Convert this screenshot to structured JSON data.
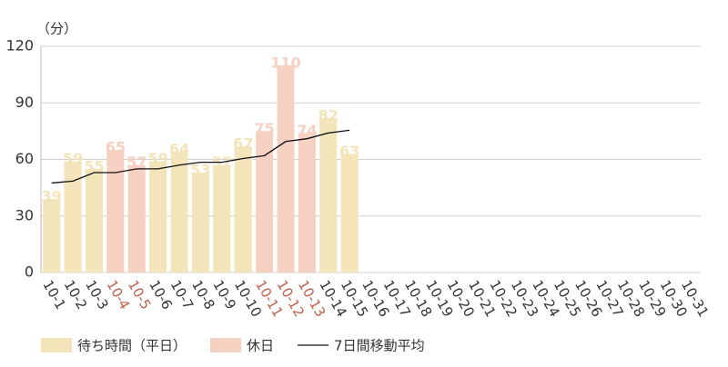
{
  "chart_data": {
    "type": "bar",
    "y_label": "（分）",
    "categories": [
      "10-1",
      "10-2",
      "10-3",
      "10-4",
      "10-5",
      "10-6",
      "10-7",
      "10-8",
      "10-9",
      "10-10",
      "10-11",
      "10-12",
      "10-13",
      "10-14",
      "10-15",
      "10-16",
      "10-17",
      "10-18",
      "10-19",
      "10-20",
      "10-21",
      "10-22",
      "10-23",
      "10-24",
      "10-25",
      "10-26",
      "10-27",
      "10-28",
      "10-29",
      "10-30",
      "10-31"
    ],
    "series": [
      {
        "name": "待ち時間（平日）",
        "type": "bar",
        "color": "#f3e4b9",
        "values": [
          39,
          59,
          55,
          null,
          null,
          59,
          64,
          53,
          57,
          67,
          null,
          null,
          null,
          82,
          63,
          null,
          null,
          null,
          null,
          null,
          null,
          null,
          null,
          null,
          null,
          null,
          null,
          null,
          null,
          null,
          null
        ]
      },
      {
        "name": "休日",
        "type": "bar",
        "color": "#f6d0c1",
        "label_color": "#c0604a",
        "values": [
          null,
          null,
          null,
          65,
          57,
          null,
          null,
          null,
          null,
          null,
          75,
          110,
          74,
          null,
          null,
          null,
          null,
          null,
          null,
          null,
          null,
          null,
          null,
          null,
          null,
          null,
          null,
          null,
          null,
          null,
          null
        ]
      },
      {
        "name": "7日間移動平均",
        "type": "line",
        "color": "#111111",
        "values": [
          47.5,
          48.5,
          53,
          53,
          55,
          55,
          57,
          58.5,
          58.5,
          60.5,
          62,
          69.5,
          71,
          74,
          75.5,
          null,
          null,
          null,
          null,
          null,
          null,
          null,
          null,
          null,
          null,
          null,
          null,
          null,
          null,
          null,
          null
        ]
      }
    ],
    "ylim": [
      0,
      120
    ],
    "yticks": [
      0,
      30,
      60,
      90,
      120
    ],
    "grid": true
  }
}
